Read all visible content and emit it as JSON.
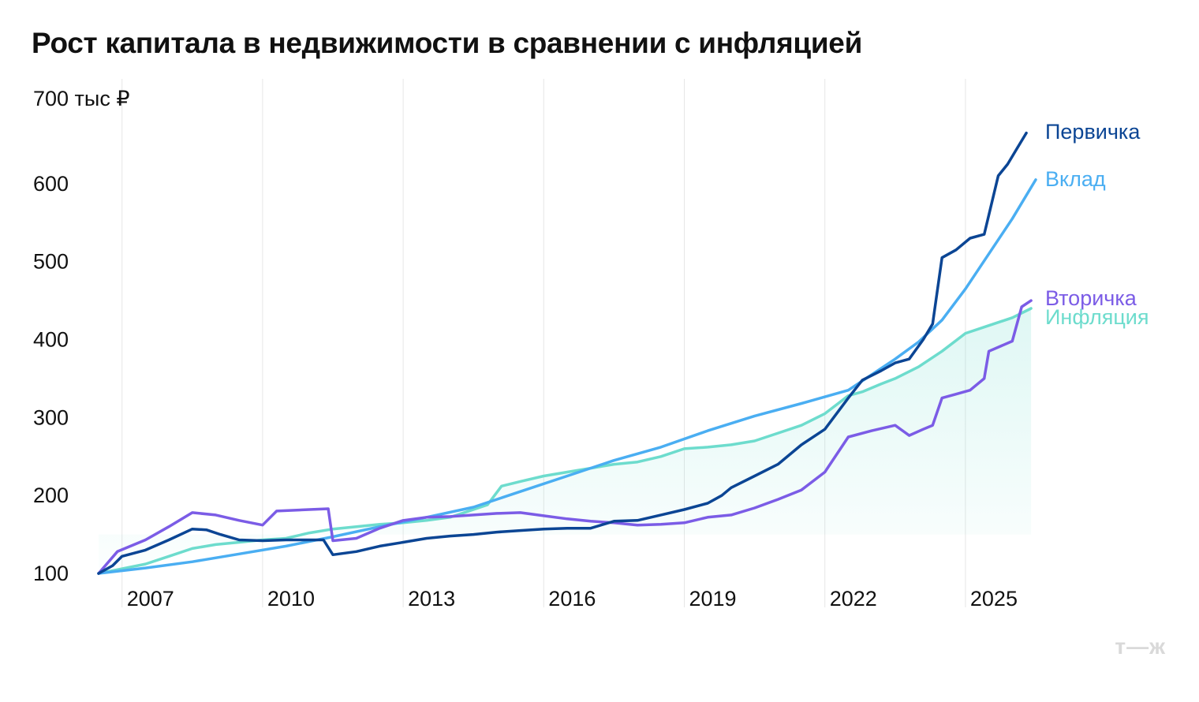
{
  "chart_data": {
    "type": "line",
    "title": "Рост капитала в недвижимости в сравнении с инфляцией",
    "xlabel": "",
    "ylabel": "",
    "y_unit_label": "700 тыс ₽",
    "ylim": [
      100,
      700
    ],
    "y_ticks": [
      100,
      200,
      300,
      400,
      500,
      600
    ],
    "xlim": [
      2006.0,
      2026.0
    ],
    "x_ticks": [
      2007,
      2010,
      2013,
      2016,
      2019,
      2022,
      2025
    ],
    "grid": "vertical",
    "legend": "end-of-line labels",
    "series": [
      {
        "name": "Первичка",
        "color": "#0b4594",
        "x": [
          2006.0,
          2006.3,
          2006.5,
          2007.0,
          2007.5,
          2008.0,
          2008.3,
          2008.6,
          2009.0,
          2009.5,
          2010.0,
          2010.8,
          2011.0,
          2011.5,
          2012.0,
          2012.5,
          2013.0,
          2013.5,
          2014.0,
          2014.5,
          2015.0,
          2015.5,
          2016.0,
          2016.5,
          2017.0,
          2017.5,
          2018.0,
          2018.5,
          2019.0,
          2019.3,
          2019.5,
          2020.0,
          2020.5,
          2021.0,
          2021.5,
          2022.0,
          2022.3,
          2022.7,
          2023.0,
          2023.3,
          2023.6,
          2023.8,
          2024.0,
          2024.3,
          2024.6,
          2024.9,
          2025.2,
          2025.4,
          2025.6,
          2025.8
        ],
        "values": [
          100,
          110,
          122,
          130,
          143,
          157,
          156,
          150,
          143,
          142,
          143,
          143,
          124,
          128,
          135,
          140,
          145,
          148,
          150,
          153,
          155,
          157,
          158,
          158,
          167,
          168,
          175,
          182,
          190,
          200,
          210,
          225,
          240,
          265,
          285,
          325,
          348,
          360,
          370,
          375,
          400,
          420,
          505,
          515,
          530,
          535,
          610,
          625,
          645,
          665
        ]
      },
      {
        "name": "Вклад",
        "color": "#4aaef2",
        "x": [
          2006.0,
          2007.0,
          2008.0,
          2009.0,
          2010.0,
          2011.0,
          2012.0,
          2013.0,
          2014.0,
          2015.0,
          2016.0,
          2017.0,
          2018.0,
          2019.0,
          2020.0,
          2021.0,
          2022.0,
          2022.5,
          2023.0,
          2023.5,
          2024.0,
          2024.5,
          2025.0,
          2025.5,
          2026.0
        ],
        "values": [
          100,
          107,
          115,
          125,
          135,
          147,
          160,
          172,
          185,
          205,
          225,
          245,
          262,
          283,
          302,
          318,
          335,
          355,
          375,
          397,
          425,
          465,
          510,
          555,
          605
        ]
      },
      {
        "name": "Вторичка",
        "color": "#7b5ce6",
        "x": [
          2006.0,
          2006.4,
          2007.0,
          2007.5,
          2008.0,
          2008.5,
          2009.0,
          2009.5,
          2009.8,
          2010.5,
          2010.9,
          2011.0,
          2011.5,
          2012.0,
          2012.5,
          2013.0,
          2013.5,
          2014.0,
          2014.5,
          2015.0,
          2015.5,
          2016.0,
          2016.5,
          2017.0,
          2017.5,
          2018.0,
          2018.5,
          2019.0,
          2019.5,
          2020.0,
          2020.5,
          2021.0,
          2021.5,
          2022.0,
          2022.5,
          2023.0,
          2023.3,
          2023.6,
          2023.8,
          2024.0,
          2024.3,
          2024.6,
          2024.9,
          2025.0,
          2025.5,
          2025.7,
          2025.9
        ],
        "values": [
          100,
          128,
          143,
          160,
          178,
          175,
          168,
          162,
          180,
          182,
          183,
          142,
          145,
          158,
          168,
          172,
          173,
          175,
          177,
          178,
          174,
          170,
          167,
          165,
          162,
          163,
          165,
          172,
          175,
          184,
          195,
          207,
          230,
          275,
          283,
          290,
          277,
          285,
          290,
          325,
          330,
          335,
          350,
          385,
          398,
          442,
          450
        ]
      },
      {
        "name": "Инфляция",
        "color": "#6ddccd",
        "x": [
          2006.0,
          2007.0,
          2007.5,
          2008.0,
          2008.5,
          2009.0,
          2009.5,
          2010.0,
          2010.5,
          2011.0,
          2011.5,
          2012.0,
          2012.5,
          2013.0,
          2013.5,
          2014.0,
          2014.3,
          2014.6,
          2015.0,
          2015.5,
          2016.0,
          2016.5,
          2017.0,
          2017.5,
          2018.0,
          2018.5,
          2019.0,
          2019.5,
          2020.0,
          2020.5,
          2021.0,
          2021.5,
          2022.0,
          2022.3,
          2022.7,
          2023.0,
          2023.5,
          2024.0,
          2024.5,
          2025.0,
          2025.5,
          2025.9
        ],
        "values": [
          100,
          112,
          122,
          132,
          137,
          140,
          143,
          145,
          152,
          157,
          160,
          163,
          165,
          168,
          172,
          182,
          188,
          212,
          218,
          225,
          230,
          235,
          240,
          243,
          250,
          260,
          262,
          265,
          270,
          280,
          290,
          305,
          328,
          333,
          343,
          350,
          365,
          385,
          408,
          418,
          428,
          440
        ]
      }
    ]
  },
  "logo": {
    "text": "т—ж"
  }
}
